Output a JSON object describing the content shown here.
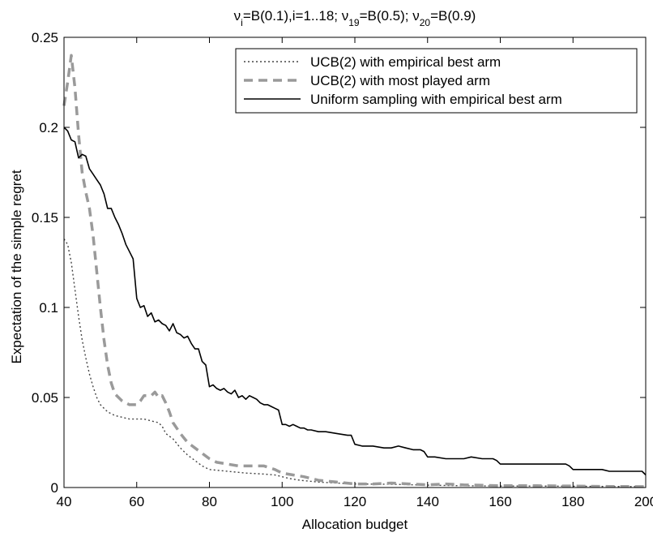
{
  "chart_data": {
    "type": "line",
    "title": {
      "parts": [
        {
          "t": "ν",
          "sub": false
        },
        {
          "t": "i",
          "sub": true
        },
        {
          "t": "=B(0.1),i=1..18; ν",
          "sub": false
        },
        {
          "t": "19",
          "sub": true
        },
        {
          "t": "=B(0.5); ν",
          "sub": false
        },
        {
          "t": "20",
          "sub": true
        },
        {
          "t": "=B(0.9)",
          "sub": false
        }
      ]
    },
    "xlabel": "Allocation budget",
    "ylabel": "Expectation of the simple regret",
    "xlim": [
      40,
      200
    ],
    "ylim": [
      0,
      0.25
    ],
    "xticks": [
      40,
      60,
      80,
      100,
      120,
      140,
      160,
      180,
      200
    ],
    "xtick_labels": [
      "40",
      "60",
      "80",
      "100",
      "120",
      "140",
      "160",
      "180",
      "200"
    ],
    "yticks": [
      0,
      0.05,
      0.1,
      0.15,
      0.2,
      0.25
    ],
    "ytick_labels": [
      "0",
      "0.05",
      "0.1",
      "0.15",
      "0.2",
      "0.25"
    ],
    "grid": false,
    "legend_position": "top-right",
    "series": [
      {
        "name": "UCB(2) with empirical best arm",
        "style": "dotted",
        "color": "#444444",
        "points": [
          [
            40,
            0.138
          ],
          [
            41,
            0.135
          ],
          [
            42,
            0.125
          ],
          [
            43,
            0.11
          ],
          [
            44,
            0.095
          ],
          [
            45,
            0.082
          ],
          [
            46,
            0.072
          ],
          [
            47,
            0.063
          ],
          [
            48,
            0.056
          ],
          [
            49,
            0.05
          ],
          [
            50,
            0.046
          ],
          [
            52,
            0.042
          ],
          [
            54,
            0.04
          ],
          [
            56,
            0.039
          ],
          [
            58,
            0.038
          ],
          [
            60,
            0.038
          ],
          [
            62,
            0.038
          ],
          [
            64,
            0.037
          ],
          [
            66,
            0.036
          ],
          [
            67,
            0.034
          ],
          [
            68,
            0.03
          ],
          [
            70,
            0.027
          ],
          [
            72,
            0.022
          ],
          [
            74,
            0.018
          ],
          [
            76,
            0.015
          ],
          [
            78,
            0.012
          ],
          [
            80,
            0.01
          ],
          [
            85,
            0.009
          ],
          [
            90,
            0.008
          ],
          [
            95,
            0.0075
          ],
          [
            98,
            0.007
          ],
          [
            100,
            0.006
          ],
          [
            102,
            0.005
          ],
          [
            105,
            0.004
          ],
          [
            110,
            0.003
          ],
          [
            115,
            0.0025
          ],
          [
            120,
            0.002
          ],
          [
            130,
            0.0018
          ],
          [
            140,
            0.0013
          ],
          [
            150,
            0.001
          ],
          [
            160,
            0.0008
          ],
          [
            170,
            0.0008
          ],
          [
            180,
            0.0007
          ],
          [
            190,
            0.0006
          ],
          [
            200,
            0.0005
          ]
        ]
      },
      {
        "name": "UCB(2) with most played arm",
        "style": "dashed",
        "color": "#9a9a9a",
        "points": [
          [
            40,
            0.212
          ],
          [
            41,
            0.225
          ],
          [
            42,
            0.24
          ],
          [
            43,
            0.222
          ],
          [
            44,
            0.196
          ],
          [
            45,
            0.175
          ],
          [
            46,
            0.164
          ],
          [
            47,
            0.155
          ],
          [
            48,
            0.14
          ],
          [
            49,
            0.12
          ],
          [
            50,
            0.1
          ],
          [
            51,
            0.082
          ],
          [
            52,
            0.068
          ],
          [
            53,
            0.058
          ],
          [
            54,
            0.052
          ],
          [
            56,
            0.048
          ],
          [
            58,
            0.046
          ],
          [
            60,
            0.046
          ],
          [
            61,
            0.048
          ],
          [
            62,
            0.051
          ],
          [
            64,
            0.051
          ],
          [
            65,
            0.053
          ],
          [
            66,
            0.05
          ],
          [
            67,
            0.051
          ],
          [
            68,
            0.047
          ],
          [
            69,
            0.042
          ],
          [
            70,
            0.036
          ],
          [
            72,
            0.03
          ],
          [
            74,
            0.025
          ],
          [
            76,
            0.022
          ],
          [
            78,
            0.019
          ],
          [
            80,
            0.016
          ],
          [
            82,
            0.014
          ],
          [
            85,
            0.013
          ],
          [
            88,
            0.012
          ],
          [
            90,
            0.012
          ],
          [
            95,
            0.012
          ],
          [
            98,
            0.01
          ],
          [
            100,
            0.008
          ],
          [
            103,
            0.007
          ],
          [
            106,
            0.006
          ],
          [
            108,
            0.005
          ],
          [
            110,
            0.004
          ],
          [
            115,
            0.003
          ],
          [
            120,
            0.002
          ],
          [
            125,
            0.002
          ],
          [
            130,
            0.0025
          ],
          [
            135,
            0.002
          ],
          [
            140,
            0.0015
          ],
          [
            145,
            0.002
          ],
          [
            150,
            0.0015
          ],
          [
            160,
            0.001
          ],
          [
            170,
            0.001
          ],
          [
            180,
            0.0008
          ],
          [
            190,
            0.0006
          ],
          [
            200,
            0.0005
          ]
        ]
      },
      {
        "name": "Uniform sampling with empirical best arm",
        "style": "solid",
        "color": "#000000",
        "points": [
          [
            40,
            0.2
          ],
          [
            41,
            0.198
          ],
          [
            42,
            0.193
          ],
          [
            43,
            0.192
          ],
          [
            44,
            0.183
          ],
          [
            45,
            0.185
          ],
          [
            46,
            0.184
          ],
          [
            47,
            0.177
          ],
          [
            48,
            0.174
          ],
          [
            49,
            0.171
          ],
          [
            50,
            0.168
          ],
          [
            51,
            0.163
          ],
          [
            52,
            0.155
          ],
          [
            53,
            0.155
          ],
          [
            54,
            0.15
          ],
          [
            55,
            0.146
          ],
          [
            56,
            0.141
          ],
          [
            57,
            0.135
          ],
          [
            58,
            0.131
          ],
          [
            59,
            0.127
          ],
          [
            60,
            0.105
          ],
          [
            61,
            0.1
          ],
          [
            62,
            0.101
          ],
          [
            63,
            0.095
          ],
          [
            64,
            0.097
          ],
          [
            65,
            0.092
          ],
          [
            66,
            0.093
          ],
          [
            67,
            0.091
          ],
          [
            68,
            0.09
          ],
          [
            69,
            0.087
          ],
          [
            70,
            0.091
          ],
          [
            71,
            0.086
          ],
          [
            72,
            0.085
          ],
          [
            73,
            0.083
          ],
          [
            74,
            0.084
          ],
          [
            75,
            0.08
          ],
          [
            76,
            0.077
          ],
          [
            77,
            0.077
          ],
          [
            78,
            0.07
          ],
          [
            79,
            0.068
          ],
          [
            80,
            0.056
          ],
          [
            81,
            0.057
          ],
          [
            82,
            0.055
          ],
          [
            83,
            0.054
          ],
          [
            84,
            0.055
          ],
          [
            85,
            0.053
          ],
          [
            86,
            0.052
          ],
          [
            87,
            0.054
          ],
          [
            88,
            0.05
          ],
          [
            89,
            0.051
          ],
          [
            90,
            0.049
          ],
          [
            91,
            0.051
          ],
          [
            92,
            0.05
          ],
          [
            93,
            0.049
          ],
          [
            94,
            0.047
          ],
          [
            95,
            0.046
          ],
          [
            96,
            0.046
          ],
          [
            97,
            0.045
          ],
          [
            98,
            0.044
          ],
          [
            99,
            0.043
          ],
          [
            100,
            0.035
          ],
          [
            101,
            0.035
          ],
          [
            102,
            0.034
          ],
          [
            103,
            0.035
          ],
          [
            104,
            0.034
          ],
          [
            105,
            0.033
          ],
          [
            106,
            0.033
          ],
          [
            107,
            0.032
          ],
          [
            108,
            0.032
          ],
          [
            110,
            0.031
          ],
          [
            112,
            0.031
          ],
          [
            115,
            0.03
          ],
          [
            118,
            0.029
          ],
          [
            119,
            0.029
          ],
          [
            120,
            0.024
          ],
          [
            122,
            0.023
          ],
          [
            125,
            0.023
          ],
          [
            128,
            0.022
          ],
          [
            130,
            0.022
          ],
          [
            132,
            0.023
          ],
          [
            134,
            0.022
          ],
          [
            136,
            0.021
          ],
          [
            138,
            0.021
          ],
          [
            139,
            0.02
          ],
          [
            140,
            0.017
          ],
          [
            142,
            0.017
          ],
          [
            145,
            0.016
          ],
          [
            148,
            0.016
          ],
          [
            150,
            0.016
          ],
          [
            152,
            0.017
          ],
          [
            155,
            0.016
          ],
          [
            158,
            0.016
          ],
          [
            159,
            0.015
          ],
          [
            160,
            0.013
          ],
          [
            162,
            0.013
          ],
          [
            165,
            0.013
          ],
          [
            168,
            0.013
          ],
          [
            170,
            0.013
          ],
          [
            172,
            0.013
          ],
          [
            175,
            0.013
          ],
          [
            178,
            0.013
          ],
          [
            179,
            0.012
          ],
          [
            180,
            0.01
          ],
          [
            182,
            0.01
          ],
          [
            185,
            0.01
          ],
          [
            188,
            0.01
          ],
          [
            190,
            0.009
          ],
          [
            192,
            0.009
          ],
          [
            195,
            0.009
          ],
          [
            198,
            0.009
          ],
          [
            199,
            0.009
          ],
          [
            200,
            0.007
          ]
        ]
      }
    ]
  }
}
